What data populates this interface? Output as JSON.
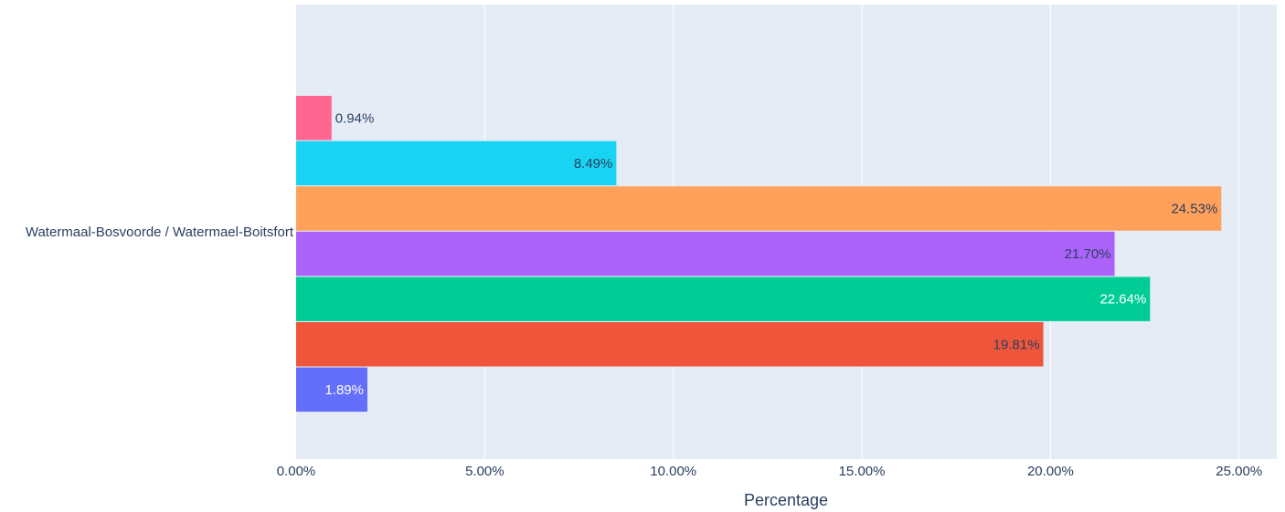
{
  "chart_data": {
    "type": "bar",
    "orientation": "horizontal",
    "barmode": "group",
    "category": "Watermaal-Bosvoorde / Watermael-Boitsfort",
    "xlabel": "Percentage",
    "ylabel": "",
    "xlim": [
      0,
      26.0
    ],
    "xticks": [
      0,
      5,
      10,
      15,
      20,
      25
    ],
    "xtick_labels": [
      "0.00%",
      "5.00%",
      "10.00%",
      "15.00%",
      "20.00%",
      "25.00%"
    ],
    "grid": true,
    "series": [
      {
        "value": 1.89,
        "label": "1.89%",
        "color": "#636efa",
        "label_color": "#ffffff"
      },
      {
        "value": 19.81,
        "label": "19.81%",
        "color": "#ef553b",
        "label_color": "#2a3f5f"
      },
      {
        "value": 22.64,
        "label": "22.64%",
        "color": "#00cc96",
        "label_color": "#ffffff"
      },
      {
        "value": 21.7,
        "label": "21.70%",
        "color": "#ab63fa",
        "label_color": "#2a3f5f"
      },
      {
        "value": 24.53,
        "label": "24.53%",
        "color": "#ffa15a",
        "label_color": "#2a3f5f"
      },
      {
        "value": 8.49,
        "label": "8.49%",
        "color": "#19d3f3",
        "label_color": "#2a3f5f"
      },
      {
        "value": 0.94,
        "label": "0.94%",
        "color": "#ff6692",
        "label_color": "#2a3f5f"
      }
    ],
    "colors": {
      "plot_bg": "#e5ecf6",
      "grid": "#ffffff",
      "text": "#2a3f5f"
    }
  }
}
